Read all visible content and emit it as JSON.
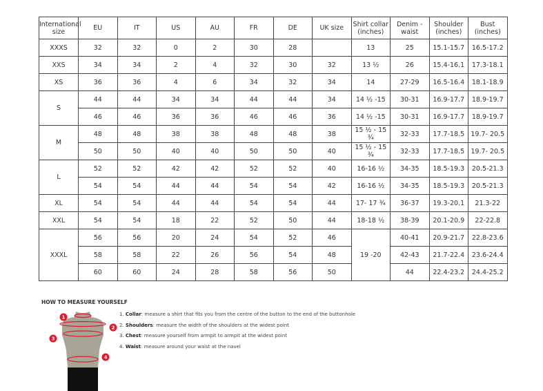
{
  "headers": [
    "International size",
    "EU",
    "IT",
    "US",
    "AU",
    "FR",
    "DE",
    "UK size",
    "Shirt collar (inches)",
    "Denim - waist",
    "Shoulder (inches)",
    "Bust (inches)"
  ],
  "groups": [
    {
      "size": "XXXS",
      "rows": [
        [
          "32",
          "32",
          "0",
          "2",
          "30",
          "28",
          "",
          "13",
          "25",
          "15.1-15.7",
          "16.5-17.2"
        ]
      ]
    },
    {
      "size": "XXS",
      "rows": [
        [
          "34",
          "34",
          "2",
          "4",
          "32",
          "30",
          "32",
          "13 ½",
          "26",
          "15.4-16.1",
          "17.3-18.1"
        ]
      ]
    },
    {
      "size": "XS",
      "rows": [
        [
          "36",
          "36",
          "4",
          "6",
          "34",
          "32",
          "34",
          "14",
          "27-29",
          "16.5-16.4",
          "18.1-18.9"
        ]
      ]
    },
    {
      "size": "S",
      "rows": [
        [
          "44",
          "44",
          "34",
          "34",
          "44",
          "44",
          "34",
          "14 ½ -15",
          "30-31",
          "16.9-17.7",
          "18.9-19.7"
        ],
        [
          "46",
          "46",
          "36",
          "36",
          "46",
          "46",
          "36",
          "14 ½ -15",
          "30-31",
          "16.9-17.7",
          "18.9-19.7"
        ]
      ]
    },
    {
      "size": "M",
      "rows": [
        [
          "48",
          "48",
          "38",
          "38",
          "48",
          "48",
          "38",
          "15 ½ - 15 ¾",
          "32-33",
          "17.7-18.5",
          "19.7- 20.5"
        ],
        [
          "50",
          "50",
          "40",
          "40",
          "50",
          "50",
          "40",
          "15 ½ - 15 ¾",
          "32-33",
          "17.7-18.5",
          "19.7- 20.5"
        ]
      ]
    },
    {
      "size": "L",
      "rows": [
        [
          "52",
          "52",
          "42",
          "42",
          "52",
          "52",
          "40",
          "16-16 ½",
          "34-35",
          "18.5-19.3",
          "20.5-21.3"
        ],
        [
          "54",
          "54",
          "44",
          "44",
          "54",
          "54",
          "42",
          "16-16 ½",
          "34-35",
          "18.5-19.3",
          "20.5-21.3"
        ]
      ]
    },
    {
      "size": "XL",
      "rows": [
        [
          "54",
          "54",
          "44",
          "44",
          "54",
          "54",
          "44",
          "17- 17 ¾",
          "36-37",
          "19.3-20.1",
          "21.3-22"
        ]
      ]
    },
    {
      "size": "XXL",
      "rows": [
        [
          "54",
          "54",
          "18",
          "22",
          "52",
          "50",
          "44",
          "18-18 ½",
          "38-39",
          "20.1-20.9",
          "22-22.8"
        ]
      ]
    },
    {
      "size": "XXXL",
      "rows": [
        [
          "56",
          "56",
          "20",
          "24",
          "54",
          "52",
          "46",
          "19 -20",
          "40-41",
          "20.9-21.7",
          "22.8-23.6"
        ],
        [
          "58",
          "58",
          "22",
          "26",
          "56",
          "54",
          "48",
          null,
          "42-43",
          "21.7-22.4",
          "23.6-24.4"
        ],
        [
          "60",
          "60",
          "24",
          "28",
          "58",
          "56",
          "50",
          null,
          "44",
          "22.4-23.2",
          "24.4-25.2"
        ]
      ]
    }
  ],
  "guide": {
    "title": "HOW TO MEASURE YOURSELF",
    "steps": [
      {
        "num": "1.",
        "term": "Collar",
        "text": ": measure a shirt that fits you from the centre of the button to the end of the buttonhole"
      },
      {
        "num": "2.",
        "term": "Shoulders",
        "text": ": measure the width of the shoulders at the widest point"
      },
      {
        "num": "3.",
        "term": "Chest",
        "text": ": measure yourself from armpit to armpit at the widest point"
      },
      {
        "num": "4.",
        "term": "Waist",
        "text": ": measure around your waist at the navel"
      }
    ],
    "markers": [
      "1",
      "2",
      "3",
      "4"
    ],
    "colors": {
      "marker": "#e0192b",
      "body": "#a7a595",
      "shorts": "#111111"
    }
  }
}
